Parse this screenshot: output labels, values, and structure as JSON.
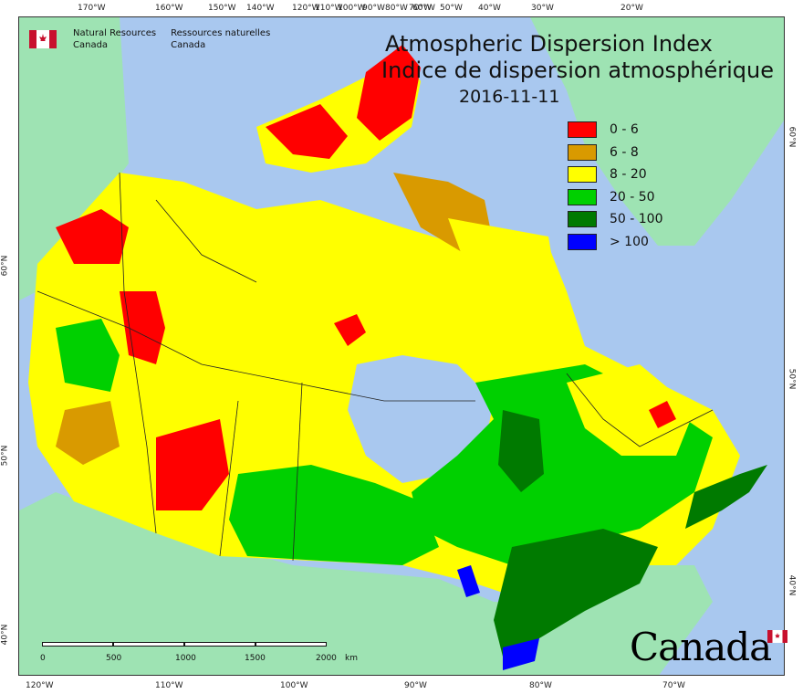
{
  "agency": {
    "english_line1": "Natural Resources",
    "english_line2": "Canada",
    "french_line1": "Ressources naturelles",
    "french_line2": "Canada"
  },
  "title": {
    "english": "Atmospheric Dispersion Index",
    "french": "Indice de dispersion atmosphérique",
    "date": "2016-11-11"
  },
  "legend": [
    {
      "label": "0 - 6",
      "color": "#ff0000"
    },
    {
      "label": "6 - 8",
      "color": "#d99a00"
    },
    {
      "label": "8 - 20",
      "color": "#ffff00"
    },
    {
      "label": "20 - 50",
      "color": "#00d000"
    },
    {
      "label": "50 - 100",
      "color": "#007a00"
    },
    {
      "label": "> 100",
      "color": "#0000ff"
    }
  ],
  "top_ticks": [
    "170°W",
    "160°W",
    "150°W",
    "140°W",
    "120°W",
    "110°W",
    "100°W",
    "90°W",
    "80°W",
    "70°W",
    "60°W",
    "50°W",
    "40°W",
    "30°W",
    "20°W"
  ],
  "bottom_ticks": [
    "120°W",
    "110°W",
    "100°W",
    "90°W",
    "80°W",
    "70°W"
  ],
  "left_ticks": [
    "60°N",
    "50°N",
    "40°N"
  ],
  "right_ticks": [
    "60°N",
    "50°N",
    "40°N"
  ],
  "scale": {
    "labels": [
      "0",
      "500",
      "1000",
      "1500",
      "2000"
    ],
    "unit": "km"
  },
  "wordmark": "Canada",
  "colors": {
    "ocean": "#a9c8ef",
    "foreign_land": "#9ee3b3",
    "border": "#333333"
  }
}
